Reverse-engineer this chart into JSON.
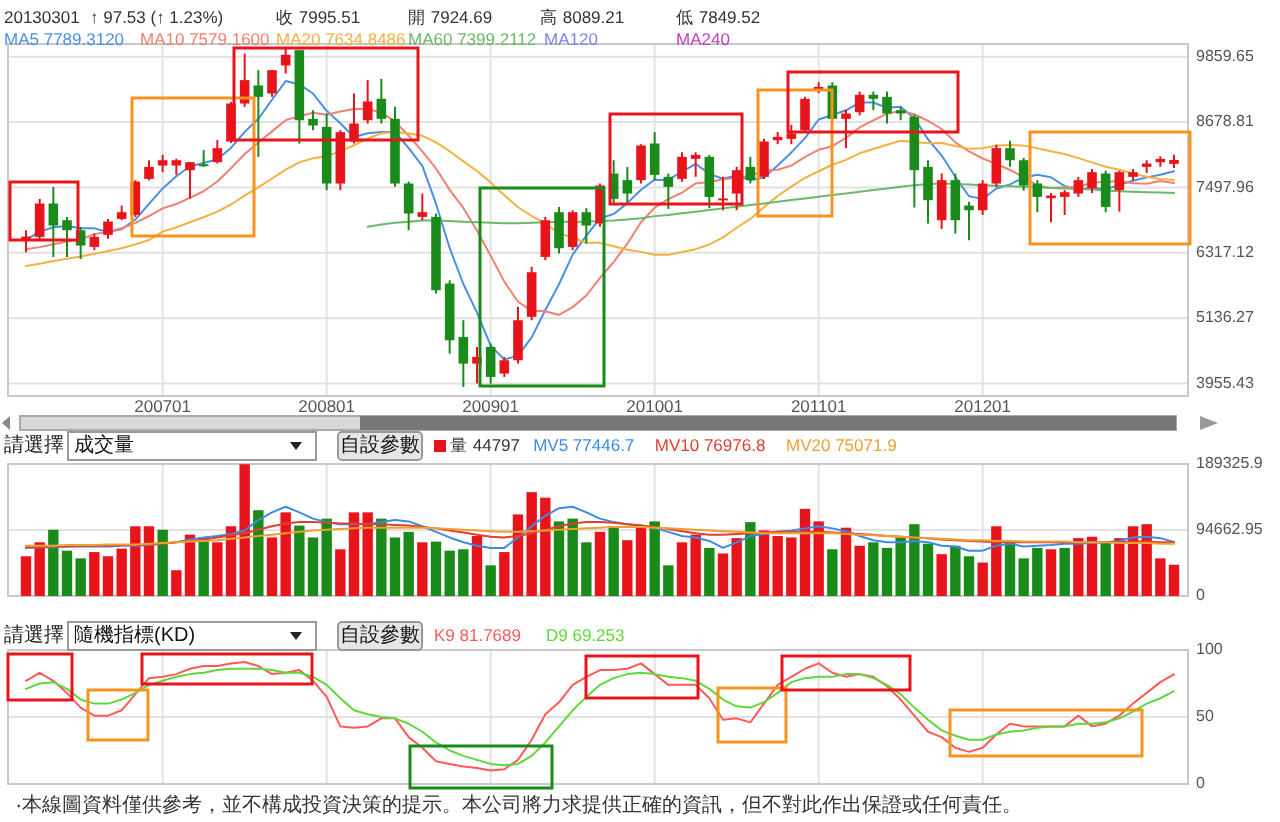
{
  "chart_data": [
    {
      "type": "candlestick",
      "annotations": [
        "20130301",
        "↑ 97.53 (↑ 1.23%)",
        "收 7995.51",
        "開 7924.69",
        "高 8089.21",
        "低 7849.52"
      ],
      "categories": [
        null,
        null,
        null,
        null,
        null,
        null,
        null,
        null,
        null,
        null,
        "200701",
        null,
        null,
        null,
        null,
        null,
        null,
        null,
        null,
        null,
        null,
        null,
        "200801",
        null,
        null,
        null,
        null,
        null,
        null,
        null,
        null,
        null,
        null,
        null,
        "200901",
        null,
        null,
        null,
        null,
        null,
        null,
        null,
        null,
        null,
        null,
        null,
        "201001",
        null,
        null,
        null,
        null,
        null,
        null,
        null,
        null,
        null,
        null,
        null,
        "201101",
        null,
        null,
        null,
        null,
        null,
        null,
        null,
        null,
        null,
        null,
        null,
        "201201",
        null,
        null,
        null,
        null,
        null,
        null,
        null,
        null,
        null,
        null,
        null,
        null,
        null,
        null
      ],
      "ohlc": [
        [
          6560,
          6725,
          6327,
          6610
        ],
        [
          6605,
          7290,
          6570,
          7207
        ],
        [
          7207,
          7508,
          6243,
          6810
        ],
        [
          6906,
          6966,
          6243,
          6725
        ],
        [
          6725,
          6786,
          6207,
          6448
        ],
        [
          6424,
          6665,
          6364,
          6605
        ],
        [
          6641,
          6930,
          6569,
          6882
        ],
        [
          6930,
          7171,
          6906,
          7051
        ],
        [
          7003,
          7630,
          6966,
          7605
        ],
        [
          7653,
          7990,
          7630,
          7870
        ],
        [
          7894,
          8087,
          7774,
          7990
        ],
        [
          7894,
          8015,
          7726,
          7990
        ],
        [
          7810,
          7955,
          7292,
          7955
        ],
        [
          7918,
          8172,
          7870,
          7894
        ],
        [
          7955,
          8352,
          7930,
          8208
        ],
        [
          8328,
          9040,
          8300,
          9015
        ],
        [
          9015,
          9919,
          8955,
          9437
        ],
        [
          9340,
          9617,
          8051,
          9135
        ],
        [
          9196,
          9617,
          9135,
          9617
        ],
        [
          9702,
          10039,
          9557,
          9895
        ],
        [
          9979,
          9979,
          8292,
          8713
        ],
        [
          8738,
          8894,
          8533,
          8617
        ],
        [
          8593,
          8834,
          7448,
          7569
        ],
        [
          7569,
          8533,
          7448,
          8497
        ],
        [
          8328,
          9196,
          8292,
          8653
        ],
        [
          8713,
          9437,
          8653,
          9051
        ],
        [
          9100,
          9461,
          8653,
          8738
        ],
        [
          8738,
          8955,
          7509,
          7569
        ],
        [
          7569,
          7605,
          6725,
          7027
        ],
        [
          6966,
          7388,
          6906,
          7051
        ],
        [
          6966,
          7027,
          5580,
          5641
        ],
        [
          5762,
          5822,
          4496,
          4737
        ],
        [
          4797,
          5099,
          3894,
          4315
        ],
        [
          4315,
          4617,
          3954,
          4436
        ],
        [
          4617,
          4677,
          3954,
          4075
        ],
        [
          4135,
          4436,
          4075,
          4376
        ],
        [
          4376,
          5340,
          4315,
          5099
        ],
        [
          5160,
          6063,
          5099,
          5966
        ],
        [
          6243,
          6966,
          6183,
          6906
        ],
        [
          7051,
          7147,
          6303,
          6400
        ],
        [
          6424,
          7087,
          6364,
          7051
        ],
        [
          7051,
          7123,
          6484,
          6810
        ],
        [
          6846,
          7569,
          6786,
          7533
        ],
        [
          7750,
          7990,
          7220,
          7292
        ],
        [
          7630,
          7870,
          7208,
          7388
        ],
        [
          7630,
          8280,
          7570,
          8256
        ],
        [
          8292,
          8497,
          7630,
          7726
        ],
        [
          7690,
          7750,
          7110,
          7509
        ],
        [
          7653,
          8135,
          7600,
          8051
        ],
        [
          8015,
          8135,
          7690,
          8087
        ],
        [
          8051,
          8087,
          7123,
          7328
        ],
        [
          7268,
          7690,
          7087,
          7300
        ],
        [
          7388,
          7870,
          7087,
          7810
        ],
        [
          7870,
          8051,
          7570,
          7630
        ],
        [
          7690,
          8380,
          7653,
          8328
        ],
        [
          8352,
          8500,
          8280,
          8412
        ],
        [
          8376,
          8630,
          8280,
          8473
        ],
        [
          8533,
          9135,
          8497,
          9100
        ],
        [
          9256,
          9400,
          9200,
          9316
        ],
        [
          9340,
          9400,
          8700,
          8738
        ],
        [
          8738,
          8900,
          8208,
          8834
        ],
        [
          8858,
          9230,
          8800,
          9172
        ],
        [
          9172,
          9230,
          8894,
          9100
        ],
        [
          9135,
          9230,
          8653,
          8834
        ],
        [
          8894,
          8955,
          8713,
          8834
        ],
        [
          8774,
          8810,
          7135,
          7810
        ],
        [
          7870,
          7990,
          6846,
          7268
        ],
        [
          6906,
          7750,
          6750,
          7630
        ],
        [
          7630,
          7750,
          6665,
          6906
        ],
        [
          7171,
          7240,
          6545,
          7087
        ],
        [
          7087,
          7630,
          7000,
          7569
        ],
        [
          7569,
          8270,
          7509,
          8208
        ],
        [
          8208,
          8340,
          7870,
          7990
        ],
        [
          7990,
          8030,
          7440,
          7533
        ],
        [
          7569,
          7630,
          7050,
          7328
        ],
        [
          7304,
          7400,
          6870,
          7352
        ],
        [
          7328,
          7450,
          7000,
          7412
        ],
        [
          7388,
          7690,
          7328,
          7630
        ],
        [
          7485,
          7830,
          7400,
          7774
        ],
        [
          7750,
          7800,
          7050,
          7147
        ],
        [
          7448,
          7800,
          7060,
          7774
        ],
        [
          7690,
          7830,
          7630,
          7774
        ],
        [
          7870,
          7990,
          7760,
          7930
        ],
        [
          7955,
          8060,
          7870,
          8015
        ],
        [
          7924.69,
          8089.21,
          7849.52,
          7995.51
        ]
      ],
      "colors": [
        "#e8141b",
        "#e8141b",
        "#1a8a1a",
        "#1a8a1a",
        "#1a8a1a",
        "#e8141b",
        "#e8141b",
        "#e8141b",
        "#e8141b",
        "#e8141b",
        "#e8141b",
        "#e8141b",
        "#e8141b",
        "#1a8a1a",
        "#e8141b",
        "#e8141b",
        "#e8141b",
        "#1a8a1a",
        "#e8141b",
        "#e8141b",
        "#1a8a1a",
        "#1a8a1a",
        "#1a8a1a",
        "#e8141b",
        "#e8141b",
        "#e8141b",
        "#1a8a1a",
        "#1a8a1a",
        "#1a8a1a",
        "#e8141b",
        "#1a8a1a",
        "#1a8a1a",
        "#1a8a1a",
        "#e8141b",
        "#1a8a1a",
        "#e8141b",
        "#e8141b",
        "#e8141b",
        "#e8141b",
        "#1a8a1a",
        "#e8141b",
        "#1a8a1a",
        "#e8141b",
        "#1a8a1a",
        "#1a8a1a",
        "#e8141b",
        "#1a8a1a",
        "#1a8a1a",
        "#e8141b",
        "#e8141b",
        "#1a8a1a",
        "#e8141b",
        "#e8141b",
        "#1a8a1a",
        "#e8141b",
        "#e8141b",
        "#e8141b",
        "#e8141b",
        "#e8141b",
        "#1a8a1a",
        "#e8141b",
        "#e8141b",
        "#1a8a1a",
        "#1a8a1a",
        "#1a8a1a",
        "#1a8a1a",
        "#1a8a1a",
        "#e8141b",
        "#1a8a1a",
        "#1a8a1a",
        "#e8141b",
        "#e8141b",
        "#1a8a1a",
        "#1a8a1a",
        "#1a8a1a",
        "#e8141b",
        "#e8141b",
        "#e8141b",
        "#e8141b",
        "#1a8a1a",
        "#e8141b",
        "#e8141b",
        "#e8141b",
        "#e8141b",
        "#e8141b"
      ],
      "series": [
        {
          "name": "MA5 7789.3120",
          "type": "line",
          "color": "#4a90e2",
          "values": [
            6550,
            6700,
            6780,
            6800,
            6760,
            6759,
            6694,
            6742,
            6918,
            7203,
            7480,
            7701,
            7882,
            7940,
            8007,
            8212,
            8502,
            8738,
            9082,
            9420,
            9359,
            9195,
            8882,
            8658,
            8410,
            8477,
            8502,
            8502,
            8208,
            7887,
            7205,
            6405,
            5754,
            5236,
            4641,
            4388,
            4460,
            4790,
            5284,
            5749,
            6284,
            6627,
            6940,
            7017,
            7215,
            7456,
            7639,
            7634,
            7786,
            7926,
            7740,
            7655,
            7715,
            7631,
            7679,
            7896,
            8131,
            8389,
            8726,
            8808,
            8892,
            9032,
            9032,
            8936,
            8955,
            8750,
            8369,
            8075,
            7690,
            7340,
            7292,
            7480,
            7552,
            7677,
            7726,
            7682,
            7523,
            7451,
            7499,
            7463,
            7547,
            7620,
            7680,
            7728,
            7789.312
          ]
        },
        {
          "name": "MA10 7579.1600",
          "type": "line",
          "color": "#f08070",
          "values": [
            6380,
            6420,
            6470,
            6520,
            6560,
            6655,
            6697,
            6761,
            6859,
            6982,
            7120,
            7198,
            7312,
            7429,
            7605,
            7846,
            8102,
            8310,
            8511,
            8714,
            8786,
            8849,
            8810,
            8870,
            8915,
            8918,
            8849,
            8692,
            8433,
            8149,
            7841,
            7454,
            7128,
            6722,
            6264,
            5797,
            5433,
            5272,
            5260,
            5195,
            5336,
            5544,
            5865,
            6151,
            6482,
            6870,
            7133,
            7287,
            7402,
            7571,
            7598,
            7647,
            7675,
            7709,
            7803,
            7818,
            7893,
            8052,
            8179,
            8244,
            8394,
            8582,
            8711,
            8831,
            8882,
            8821,
            8701,
            8554,
            8313,
            8148,
            8021,
            7925,
            7814,
            7684,
            7533,
            7487,
            7502,
            7502,
            7588,
            7595,
            7615,
            7572,
            7566,
            7614,
            7579.16
          ]
        },
        {
          "name": "MA20 7634.8486",
          "type": "line",
          "color": "#f5b042",
          "values": [
            6080,
            6120,
            6170,
            6210,
            6250,
            6300,
            6350,
            6400,
            6470,
            6550,
            6700,
            6780,
            6870,
            6960,
            7060,
            7190,
            7350,
            7500,
            7660,
            7820,
            7953,
            8024,
            8061,
            8150,
            8260,
            8382,
            8476,
            8501,
            8472,
            8432,
            8314,
            8152,
            7969,
            7796,
            7590,
            7358,
            7141,
            6982,
            6847,
            6672,
            6589,
            6499,
            6497,
            6437,
            6373,
            6334,
            6283,
            6280,
            6331,
            6383,
            6467,
            6596,
            6770,
            6930,
            7143,
            7344,
            7513,
            7670,
            7791,
            7908,
            7996,
            8115,
            8193,
            8270,
            8343,
            8320,
            8297,
            8303,
            8246,
            8196,
            8208,
            8254,
            8263,
            8258,
            8208,
            8154,
            8102,
            8028,
            7951,
            7872,
            7818,
            7749,
            7690,
            7649,
            7634.8486
          ]
        },
        {
          "name": "MA60 7399.2112",
          "type": "line",
          "color": "#6ab86a",
          "values": [
            null,
            null,
            null,
            null,
            null,
            null,
            null,
            null,
            null,
            null,
            null,
            null,
            null,
            null,
            null,
            null,
            null,
            null,
            null,
            null,
            null,
            null,
            null,
            null,
            null,
            6790,
            6830,
            6860,
            6880,
            6900,
            6900,
            6890,
            6880,
            6870,
            6860,
            6850,
            6850,
            6860,
            6870,
            6880,
            6880,
            6880,
            6890,
            6900,
            6920,
            6940,
            6980,
            7000,
            7030,
            7060,
            7090,
            7120,
            7150,
            7180,
            7210,
            7240,
            7270,
            7300,
            7330,
            7360,
            7390,
            7420,
            7450,
            7480,
            7510,
            7540,
            7560,
            7570,
            7560,
            7550,
            7540,
            7530,
            7520,
            7510,
            7500,
            7490,
            7480,
            7470,
            7460,
            7445,
            7430,
            7420,
            7410,
            7405,
            7399.2112
          ]
        },
        {
          "name": "MA120",
          "type": "line",
          "color": "#8080ee",
          "values": [
            null,
            null,
            null,
            null,
            null,
            null,
            null,
            null,
            null,
            null,
            null,
            null,
            null,
            null,
            null,
            null,
            null,
            null,
            null,
            null,
            null,
            null,
            null,
            null,
            null,
            null,
            null,
            null,
            null,
            null,
            null,
            null,
            null,
            null,
            null,
            null,
            null,
            null,
            null,
            null,
            null,
            null,
            null,
            null,
            null,
            null,
            null,
            null,
            null,
            null,
            null,
            null,
            null,
            null,
            null,
            null,
            null,
            null,
            null,
            null,
            null,
            null,
            null,
            null,
            null,
            null,
            null,
            null,
            null,
            null,
            null,
            null,
            null,
            null,
            null,
            null,
            null,
            null,
            null,
            null,
            null,
            null,
            null,
            null,
            null
          ]
        },
        {
          "name": "MA240",
          "type": "line",
          "color": "#c040c0",
          "values": [
            null,
            null,
            null,
            null,
            null,
            null,
            null,
            null,
            null,
            null,
            null,
            null,
            null,
            null,
            null,
            null,
            null,
            null,
            null,
            null,
            null,
            null,
            null,
            null,
            null,
            null,
            null,
            null,
            null,
            null,
            null,
            null,
            null,
            null,
            null,
            null,
            null,
            null,
            null,
            null,
            null,
            null,
            null,
            null,
            null,
            null,
            null,
            null,
            null,
            null,
            null,
            null,
            null,
            null,
            null,
            null,
            null,
            null,
            null,
            null,
            null,
            null,
            null,
            null,
            null,
            null,
            null,
            null,
            null,
            null,
            null,
            null,
            null,
            null,
            null,
            null,
            null,
            null,
            null,
            null,
            null,
            null,
            null,
            null,
            null
          ]
        }
      ],
      "ylim": [
        3730,
        10090
      ],
      "yticks": [
        3955.43,
        5136.27,
        6317.12,
        7497.96,
        8678.81,
        9859.65
      ],
      "grid": true,
      "legend": "top left"
    },
    {
      "type": "bar",
      "annotations": [
        "請選擇",
        "成交量",
        "自設參數"
      ],
      "categories": [
        null,
        null,
        null,
        null,
        null,
        null,
        null,
        null,
        null,
        null,
        "200701",
        null,
        null,
        null,
        null,
        null,
        null,
        null,
        null,
        null,
        null,
        null,
        "200801",
        null,
        null,
        null,
        null,
        null,
        null,
        null,
        null,
        null,
        null,
        null,
        "200901",
        null,
        null,
        null,
        null,
        null,
        null,
        null,
        null,
        null,
        null,
        null,
        "201001",
        null,
        null,
        null,
        null,
        null,
        null,
        null,
        null,
        null,
        null,
        null,
        "201101",
        null,
        null,
        null,
        null,
        null,
        null,
        null,
        null,
        null,
        null,
        null,
        "201201",
        null,
        null,
        null,
        null,
        null,
        null,
        null,
        null,
        null,
        null,
        null,
        null,
        null,
        null
      ],
      "series": [
        {
          "name": "量 44797",
          "type": "bar",
          "values": [
            57000,
            77000,
            95000,
            65000,
            54000,
            63000,
            57000,
            68000,
            100000,
            100000,
            95000,
            37000,
            88000,
            84000,
            77000,
            100000,
            189000,
            123000,
            84000,
            120000,
            101000,
            84000,
            111000,
            67000,
            120000,
            120000,
            111000,
            84000,
            92000,
            77000,
            78000,
            65000,
            67000,
            86000,
            44000,
            63000,
            117000,
            149000,
            141000,
            107000,
            111000,
            77000,
            92000,
            100000,
            80000,
            100000,
            107000,
            44000,
            77000,
            88000,
            69000,
            61000,
            83000,
            106000,
            94000,
            86000,
            84000,
            125000,
            107000,
            67000,
            98000,
            72000,
            77000,
            69000,
            84000,
            103000,
            75000,
            60000,
            72000,
            57000,
            48000,
            100000,
            78000,
            54000,
            69000,
            67000,
            69000,
            83000,
            85000,
            77000,
            83000,
            100000,
            103000,
            54000,
            44797
          ],
          "colors": [
            "#e8141b",
            "#e8141b",
            "#1a8a1a",
            "#1a8a1a",
            "#1a8a1a",
            "#e8141b",
            "#e8141b",
            "#e8141b",
            "#e8141b",
            "#e8141b",
            "#1a8a1a",
            "#e8141b",
            "#e8141b",
            "#1a8a1a",
            "#e8141b",
            "#e8141b",
            "#e8141b",
            "#1a8a1a",
            "#e8141b",
            "#e8141b",
            "#1a8a1a",
            "#1a8a1a",
            "#1a8a1a",
            "#e8141b",
            "#e8141b",
            "#e8141b",
            "#1a8a1a",
            "#1a8a1a",
            "#1a8a1a",
            "#e8141b",
            "#1a8a1a",
            "#1a8a1a",
            "#1a8a1a",
            "#e8141b",
            "#1a8a1a",
            "#e8141b",
            "#e8141b",
            "#e8141b",
            "#e8141b",
            "#1a8a1a",
            "#1a8a1a",
            "#1a8a1a",
            "#e8141b",
            "#1a8a1a",
            "#e8141b",
            "#e8141b",
            "#1a8a1a",
            "#1a8a1a",
            "#e8141b",
            "#e8141b",
            "#1a8a1a",
            "#e8141b",
            "#e8141b",
            "#1a8a1a",
            "#e8141b",
            "#e8141b",
            "#e8141b",
            "#e8141b",
            "#e8141b",
            "#1a8a1a",
            "#e8141b",
            "#e8141b",
            "#1a8a1a",
            "#1a8a1a",
            "#1a8a1a",
            "#1a8a1a",
            "#1a8a1a",
            "#e8141b",
            "#1a8a1a",
            "#1a8a1a",
            "#e8141b",
            "#e8141b",
            "#1a8a1a",
            "#1a8a1a",
            "#1a8a1a",
            "#e8141b",
            "#1a8a1a",
            "#e8141b",
            "#e8141b",
            "#1a8a1a",
            "#e8141b",
            "#e8141b",
            "#e8141b",
            "#e8141b",
            "#e8141b"
          ]
        },
        {
          "name": "MV5 77446.7",
          "type": "line",
          "color": "#3c8ce6",
          "values": [
            69000,
            70000,
            70000,
            71000,
            71000,
            71000,
            71000,
            72000,
            72000,
            73000,
            75000,
            77000,
            81000,
            84000,
            86000,
            89000,
            94000,
            109000,
            120000,
            128000,
            120000,
            111000,
            106000,
            103000,
            103000,
            103000,
            106000,
            109000,
            107000,
            100000,
            92000,
            84000,
            77000,
            72000,
            69000,
            69000,
            84000,
            100000,
            115000,
            126000,
            128000,
            120000,
            111000,
            106000,
            103000,
            101000,
            97000,
            92000,
            86000,
            84000,
            79000,
            69000,
            77000,
            86000,
            89000,
            92000,
            94000,
            97000,
            100000,
            97000,
            93000,
            86000,
            80000,
            77000,
            77000,
            79000,
            77000,
            72000,
            71000,
            65000,
            65000,
            72000,
            75000,
            71000,
            72000,
            73000,
            75000,
            75000,
            76000,
            77000,
            79000,
            84000,
            85000,
            83000,
            77446.7
          ]
        },
        {
          "name": "MV10 76976.8",
          "type": "line",
          "color": "#e04030",
          "values": [
            70000,
            70000,
            71000,
            71000,
            72000,
            72000,
            72000,
            73000,
            73000,
            74000,
            75000,
            77000,
            79000,
            81000,
            84000,
            87000,
            90000,
            95000,
            100000,
            104000,
            106000,
            106000,
            105000,
            104000,
            104000,
            103000,
            103000,
            102000,
            101000,
            99000,
            97000,
            94000,
            91000,
            88000,
            85000,
            84000,
            86000,
            90000,
            95000,
            100000,
            104000,
            106000,
            106000,
            105000,
            103000,
            101000,
            99000,
            96000,
            93000,
            90000,
            88000,
            88000,
            89000,
            90000,
            91000,
            92000,
            92000,
            92000,
            92000,
            91000,
            90000,
            89000,
            88000,
            86000,
            85000,
            84000,
            83000,
            81000,
            80000,
            79000,
            78000,
            77000,
            77000,
            77000,
            77000,
            77000,
            77000,
            77000,
            77000,
            77000,
            77000,
            78000,
            78000,
            77000,
            76976.8
          ]
        },
        {
          "name": "MV20 75071.9",
          "type": "line",
          "color": "#f0a030",
          "values": [
            72000,
            72000,
            72000,
            73000,
            73000,
            73000,
            74000,
            74000,
            74000,
            75000,
            76000,
            77000,
            78000,
            79000,
            80000,
            82000,
            84000,
            86000,
            88000,
            90000,
            92000,
            94000,
            95000,
            96000,
            97000,
            98000,
            98000,
            98000,
            98000,
            98000,
            97000,
            96000,
            95000,
            94000,
            93000,
            92000,
            92000,
            93000,
            94000,
            95000,
            96000,
            97000,
            98000,
            99000,
            99000,
            99000,
            98000,
            97000,
            96000,
            95000,
            94000,
            93000,
            92000,
            91000,
            90000,
            90000,
            90000,
            90000,
            90000,
            90000,
            89000,
            88000,
            87000,
            86000,
            85000,
            84000,
            83000,
            82000,
            81000,
            80000,
            80000,
            79000,
            79000,
            78000,
            78000,
            78000,
            78000,
            77000,
            77000,
            77000,
            76000,
            76000,
            76000,
            75000,
            75071.9
          ]
        }
      ],
      "ylim": [
        0,
        189325.9
      ],
      "yticks": [
        0,
        94662.95,
        189325.9
      ],
      "grid": true,
      "legend": "top",
      "tick_labels": "y"
    },
    {
      "type": "line",
      "annotations": [
        "請選擇",
        "隨機指標(KD)",
        "自設參數",
        "‧本線圖資料僅供參考，並不構成投資決策的提示。本公司將力求提供正確的資訊，但不對此作出保證或任何責任。"
      ],
      "categories": [
        null,
        null,
        null,
        null,
        null,
        null,
        null,
        null,
        null,
        null,
        "200701",
        null,
        null,
        null,
        null,
        null,
        null,
        null,
        null,
        null,
        null,
        null,
        "200801",
        null,
        null,
        null,
        null,
        null,
        null,
        null,
        null,
        null,
        null,
        null,
        "200901",
        null,
        null,
        null,
        null,
        null,
        null,
        null,
        null,
        null,
        null,
        null,
        "201001",
        null,
        null,
        null,
        null,
        null,
        null,
        null,
        null,
        null,
        null,
        null,
        "201101",
        null,
        null,
        null,
        null,
        null,
        null,
        null,
        null,
        null,
        null,
        null,
        "201201",
        null,
        null,
        null,
        null,
        null,
        null,
        null,
        null,
        null,
        null,
        null,
        null,
        null,
        null
      ],
      "series": [
        {
          "name": "K9 81.7689",
          "color": "#ff5a5a",
          "values": [
            77,
            83,
            77,
            68,
            57,
            51,
            51,
            55,
            67,
            79,
            80,
            82,
            86,
            88,
            88,
            90,
            91,
            88,
            82,
            83,
            85,
            77,
            65,
            43,
            42,
            43,
            49,
            49,
            35,
            27,
            17,
            15,
            13,
            12,
            10,
            11,
            18,
            33,
            52,
            61,
            74,
            80,
            85,
            85,
            86,
            90,
            82,
            74,
            74,
            74,
            64,
            48,
            49,
            46,
            60,
            74,
            80,
            86,
            90,
            83,
            80,
            82,
            80,
            73,
            63,
            51,
            39,
            35,
            27,
            24,
            27,
            37,
            45,
            43,
            43,
            43,
            43,
            51,
            43,
            45,
            51,
            60,
            68,
            76,
            81.7689
          ]
        },
        {
          "name": "D9 69.253",
          "color": "#5fd83c",
          "values": [
            71,
            75,
            76,
            71,
            63,
            60,
            60,
            63,
            68,
            74,
            77,
            80,
            82,
            83,
            85,
            86,
            86,
            86,
            85,
            83,
            83,
            80,
            74,
            64,
            55,
            52,
            50,
            49,
            45,
            39,
            31,
            25,
            21,
            18,
            15,
            14,
            15,
            21,
            31,
            43,
            55,
            65,
            74,
            79,
            82,
            83,
            82,
            80,
            79,
            77,
            71,
            63,
            58,
            57,
            61,
            68,
            76,
            79,
            80,
            80,
            82,
            82,
            79,
            74,
            67,
            57,
            48,
            40,
            36,
            33,
            33,
            37,
            39,
            40,
            42,
            43,
            43,
            45,
            45,
            46,
            49,
            54,
            60,
            64,
            69.253
          ]
        }
      ],
      "ylim": [
        0,
        100
      ],
      "yticks": [
        0,
        50,
        100
      ],
      "grid": true,
      "legend": "top",
      "tick_labels": "y"
    }
  ]
}
